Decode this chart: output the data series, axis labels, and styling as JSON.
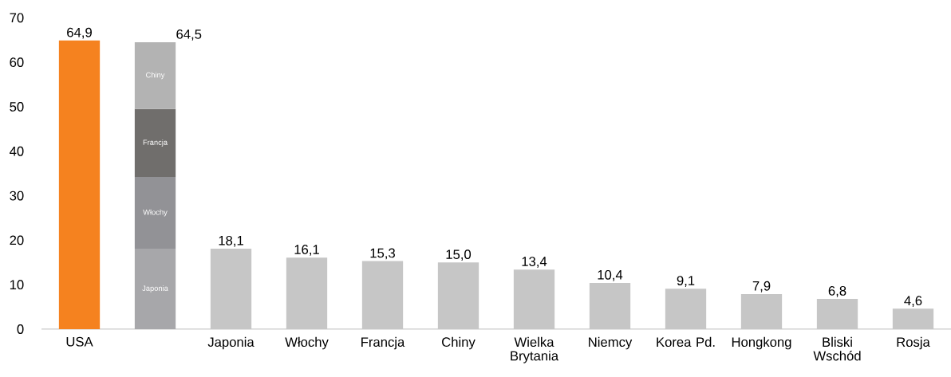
{
  "chart_data": {
    "type": "bar",
    "stacked": true,
    "categories": [
      "USA",
      null,
      "Japonia",
      "Włochy",
      "Francja",
      "Chiny",
      "Wielka Brytania",
      "Niemcy",
      "Korea Pd.",
      "Hongkong",
      "Bliski Wschód",
      "Rosja"
    ],
    "series": [
      {
        "colors": [
          "#f5821f",
          "#c6c6c6",
          "#c6c6c6",
          "#c6c6c6",
          "#c6c6c6",
          "#c6c6c6",
          "#c6c6c6",
          "#c6c6c6",
          "#c6c6c6",
          "#c6c6c6",
          "#c6c6c6",
          "#c6c6c6"
        ],
        "values": [
          64.9,
          null,
          18.1,
          16.1,
          15.3,
          15.0,
          13.4,
          10.4,
          9.1,
          7.9,
          6.8,
          4.6
        ],
        "value_labels": [
          "64,9",
          null,
          "18,1",
          "16,1",
          "15,3",
          "15,0",
          "13,4",
          "10,4",
          "9,1",
          "7,9",
          "6,8",
          "4,6"
        ]
      },
      {
        "name": "Japonia",
        "color": "#a7a7aa",
        "values": [
          null,
          18.1,
          null,
          null,
          null,
          null,
          null,
          null,
          null,
          null,
          null,
          null
        ]
      },
      {
        "name": "Włochy",
        "color": "#929296",
        "values": [
          null,
          16.1,
          null,
          null,
          null,
          null,
          null,
          null,
          null,
          null,
          null,
          null
        ]
      },
      {
        "name": "Francja",
        "color": "#706e6c",
        "values": [
          null,
          15.3,
          null,
          null,
          null,
          null,
          null,
          null,
          null,
          null,
          null,
          null
        ]
      },
      {
        "name": "Chiny",
        "color": "#b3b3b3",
        "values": [
          null,
          15.0,
          null,
          null,
          null,
          null,
          null,
          null,
          null,
          null,
          null,
          null
        ]
      }
    ],
    "totals": [
      null,
      "64,5",
      null,
      null,
      null,
      null,
      null,
      null,
      null,
      null,
      null,
      null
    ],
    "ylim": [
      0,
      70
    ],
    "yticks": [
      0,
      10,
      20,
      30,
      40,
      50,
      60,
      70
    ]
  }
}
